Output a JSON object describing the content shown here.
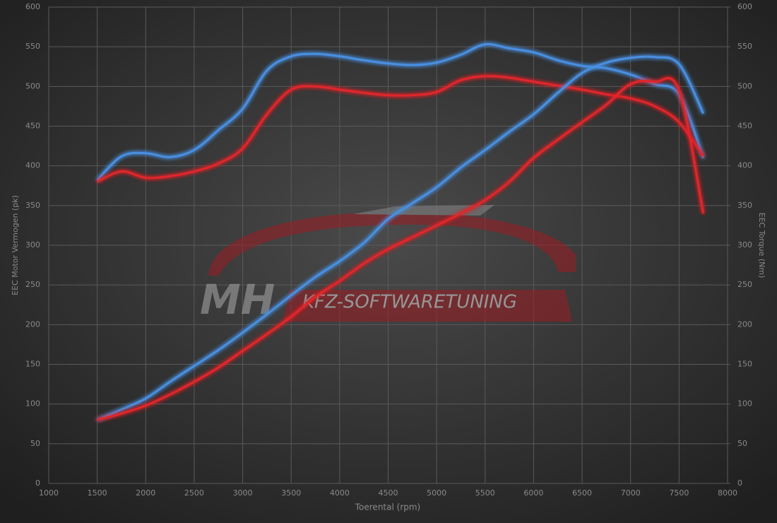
{
  "chart_data": {
    "type": "line",
    "x_label": "Toerental (rpm)",
    "y_label": "EEC Motor Vermogen (pk)",
    "y2_label": "EEC Torque (Nm)",
    "annotations": [
      "MH",
      "KFZ-SOFTWARETUNING"
    ],
    "x": [
      1500,
      1750,
      2000,
      2250,
      2500,
      2750,
      3000,
      3250,
      3500,
      3750,
      4000,
      4250,
      4500,
      4750,
      5000,
      5250,
      5500,
      5750,
      6000,
      6250,
      6500,
      6750,
      7000,
      7250,
      7500,
      7750
    ],
    "xlim": [
      1000,
      8000
    ],
    "xticks": [
      1000,
      1500,
      2000,
      2500,
      3000,
      3500,
      4000,
      4500,
      5000,
      5500,
      6000,
      6500,
      7000,
      7500,
      8000
    ],
    "ylim": [
      0,
      600
    ],
    "yticks": [
      0,
      50,
      100,
      150,
      200,
      250,
      300,
      350,
      400,
      450,
      500,
      550,
      600
    ],
    "y2lim": [
      0,
      600
    ],
    "y2ticks": [
      0,
      50,
      100,
      150,
      200,
      250,
      300,
      350,
      400,
      450,
      500,
      550,
      600
    ],
    "grid": true,
    "series": [
      {
        "color": "#4a8fe0",
        "axis": "y2",
        "values": [
          382,
          412,
          416,
          411,
          420,
          445,
          472,
          520,
          538,
          541,
          538,
          533,
          529,
          527,
          530,
          540,
          553,
          548,
          543,
          533,
          526,
          523,
          515,
          503,
          490,
          410
        ]
      },
      {
        "color": "#e0262c",
        "axis": "y2",
        "values": [
          380,
          393,
          385,
          387,
          393,
          403,
          422,
          465,
          496,
          500,
          496,
          492,
          489,
          489,
          493,
          508,
          513,
          511,
          506,
          501,
          496,
          490,
          485,
          475,
          455,
          412
        ]
      },
      {
        "color": "#4a8fe0",
        "values": [
          80,
          93,
          107,
          128,
          148,
          168,
          190,
          213,
          237,
          260,
          280,
          303,
          333,
          353,
          373,
          398,
          420,
          443,
          465,
          492,
          517,
          530,
          536,
          537,
          528,
          466
        ]
      },
      {
        "color": "#e0262c",
        "values": [
          80,
          88,
          98,
          112,
          128,
          146,
          167,
          188,
          210,
          235,
          255,
          277,
          295,
          310,
          325,
          340,
          357,
          380,
          410,
          433,
          455,
          477,
          503,
          506,
          495,
          340
        ]
      }
    ]
  }
}
